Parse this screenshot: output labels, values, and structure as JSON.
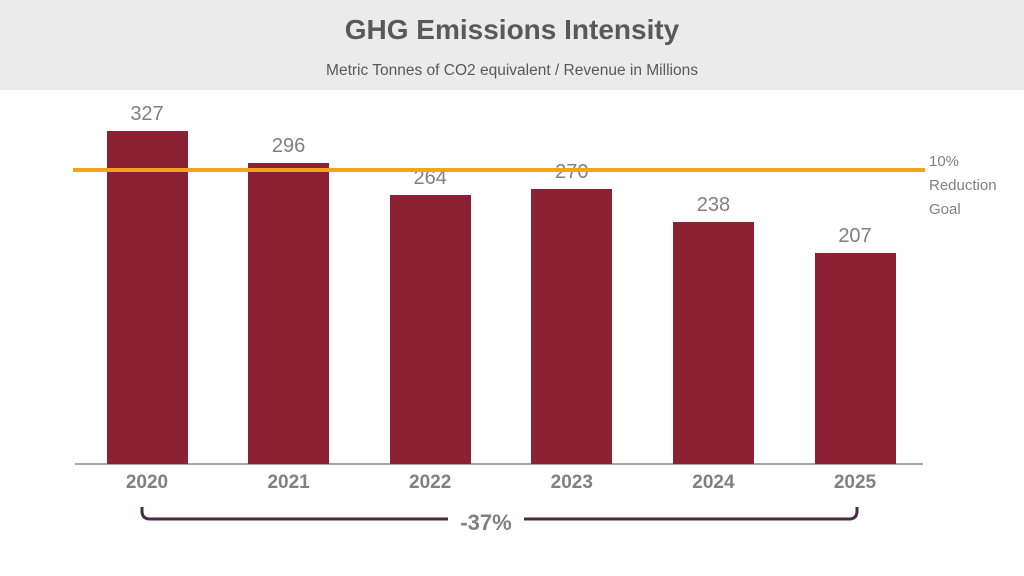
{
  "header": {
    "title": "GHG Emissions Intensity",
    "subtitle": "Metric Tonnes of CO2 equivalent / Revenue in Millions"
  },
  "chart_data": {
    "type": "bar",
    "title": "GHG Emissions Intensity",
    "subtitle": "Metric Tonnes of CO2 equivalent / Revenue in Millions",
    "categories": [
      "2020",
      "2021",
      "2022",
      "2023",
      "2024",
      "2025"
    ],
    "values": [
      327,
      296,
      264,
      270,
      238,
      207
    ],
    "xlabel": "",
    "ylabel": "Metric Tonnes of CO2 equivalent / Revenue in Millions",
    "ylim": [
      0,
      340
    ],
    "grid": false,
    "legend": false,
    "bar_color": "#8C2134",
    "value_label_color": "#808080",
    "axis_color": "#A6A6A6",
    "goal_line": {
      "label": "10% Reduction Goal",
      "value": 289,
      "color": "#F2A617"
    },
    "annotation": {
      "label": "-37%",
      "span": [
        "2020",
        "2025"
      ],
      "color": "#4B2A46"
    }
  }
}
